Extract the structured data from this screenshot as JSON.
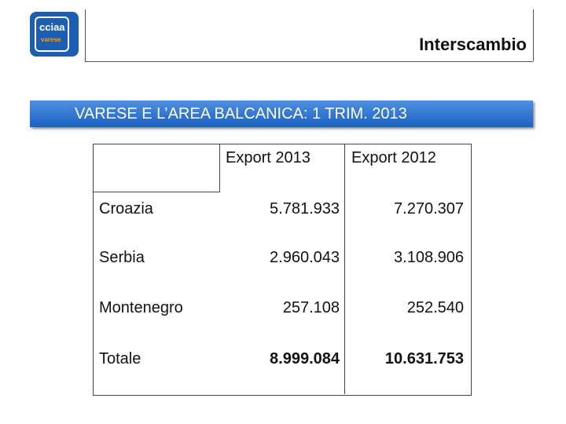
{
  "header": {
    "logo": [
      "cciaa",
      "varese"
    ],
    "title": "Interscambio"
  },
  "banner": "VARESE E L’AREA BALCANICA: 1 TRIM. 2013",
  "table": {
    "columns": [
      "Export 2013",
      "Export 2012"
    ],
    "rows": [
      [
        "Croazia",
        "5.781.933",
        "7.270.307"
      ],
      [
        "Serbia",
        "2.960.043",
        "3.108.906"
      ],
      [
        "Montenegro",
        "257.108",
        "252.540"
      ],
      [
        "Totale",
        "8.999.084",
        "10.631.753"
      ]
    ]
  }
}
